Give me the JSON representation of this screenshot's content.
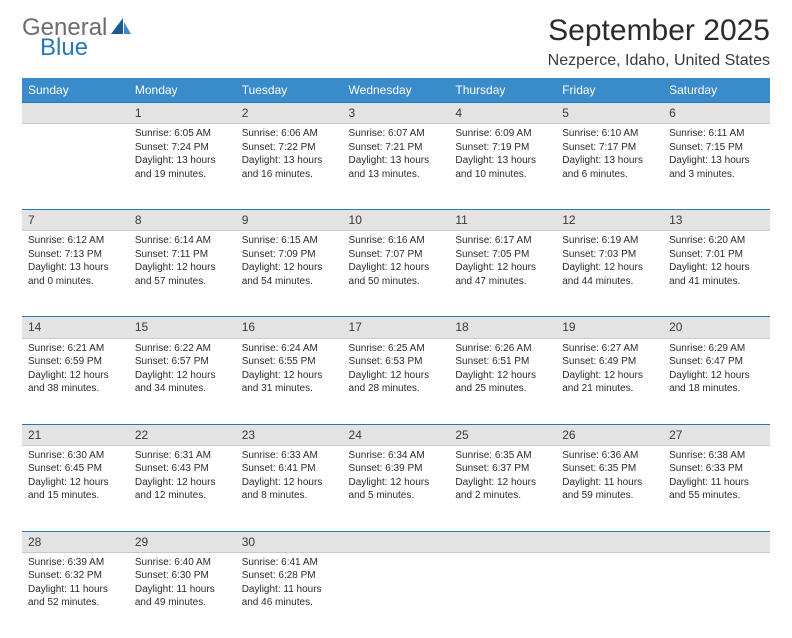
{
  "logo": {
    "text1": "General",
    "text2": "Blue",
    "accent_color": "#2978b5",
    "gray_color": "#6c6c6c"
  },
  "header": {
    "month": "September 2025",
    "location": "Nezperce, Idaho, United States"
  },
  "colors": {
    "header_bg": "#3a8bc9",
    "header_fg": "#ffffff",
    "daynum_bg": "#e3e3e3",
    "daynum_border_top": "#2978b5",
    "body_text": "#2b2b2b"
  },
  "day_names": [
    "Sunday",
    "Monday",
    "Tuesday",
    "Wednesday",
    "Thursday",
    "Friday",
    "Saturday"
  ],
  "weeks": [
    {
      "nums": [
        "",
        "1",
        "2",
        "3",
        "4",
        "5",
        "6"
      ],
      "cells": [
        null,
        {
          "sunrise": "Sunrise: 6:05 AM",
          "sunset": "Sunset: 7:24 PM",
          "day1": "Daylight: 13 hours",
          "day2": "and 19 minutes."
        },
        {
          "sunrise": "Sunrise: 6:06 AM",
          "sunset": "Sunset: 7:22 PM",
          "day1": "Daylight: 13 hours",
          "day2": "and 16 minutes."
        },
        {
          "sunrise": "Sunrise: 6:07 AM",
          "sunset": "Sunset: 7:21 PM",
          "day1": "Daylight: 13 hours",
          "day2": "and 13 minutes."
        },
        {
          "sunrise": "Sunrise: 6:09 AM",
          "sunset": "Sunset: 7:19 PM",
          "day1": "Daylight: 13 hours",
          "day2": "and 10 minutes."
        },
        {
          "sunrise": "Sunrise: 6:10 AM",
          "sunset": "Sunset: 7:17 PM",
          "day1": "Daylight: 13 hours",
          "day2": "and 6 minutes."
        },
        {
          "sunrise": "Sunrise: 6:11 AM",
          "sunset": "Sunset: 7:15 PM",
          "day1": "Daylight: 13 hours",
          "day2": "and 3 minutes."
        }
      ]
    },
    {
      "nums": [
        "7",
        "8",
        "9",
        "10",
        "11",
        "12",
        "13"
      ],
      "cells": [
        {
          "sunrise": "Sunrise: 6:12 AM",
          "sunset": "Sunset: 7:13 PM",
          "day1": "Daylight: 13 hours",
          "day2": "and 0 minutes."
        },
        {
          "sunrise": "Sunrise: 6:14 AM",
          "sunset": "Sunset: 7:11 PM",
          "day1": "Daylight: 12 hours",
          "day2": "and 57 minutes."
        },
        {
          "sunrise": "Sunrise: 6:15 AM",
          "sunset": "Sunset: 7:09 PM",
          "day1": "Daylight: 12 hours",
          "day2": "and 54 minutes."
        },
        {
          "sunrise": "Sunrise: 6:16 AM",
          "sunset": "Sunset: 7:07 PM",
          "day1": "Daylight: 12 hours",
          "day2": "and 50 minutes."
        },
        {
          "sunrise": "Sunrise: 6:17 AM",
          "sunset": "Sunset: 7:05 PM",
          "day1": "Daylight: 12 hours",
          "day2": "and 47 minutes."
        },
        {
          "sunrise": "Sunrise: 6:19 AM",
          "sunset": "Sunset: 7:03 PM",
          "day1": "Daylight: 12 hours",
          "day2": "and 44 minutes."
        },
        {
          "sunrise": "Sunrise: 6:20 AM",
          "sunset": "Sunset: 7:01 PM",
          "day1": "Daylight: 12 hours",
          "day2": "and 41 minutes."
        }
      ]
    },
    {
      "nums": [
        "14",
        "15",
        "16",
        "17",
        "18",
        "19",
        "20"
      ],
      "cells": [
        {
          "sunrise": "Sunrise: 6:21 AM",
          "sunset": "Sunset: 6:59 PM",
          "day1": "Daylight: 12 hours",
          "day2": "and 38 minutes."
        },
        {
          "sunrise": "Sunrise: 6:22 AM",
          "sunset": "Sunset: 6:57 PM",
          "day1": "Daylight: 12 hours",
          "day2": "and 34 minutes."
        },
        {
          "sunrise": "Sunrise: 6:24 AM",
          "sunset": "Sunset: 6:55 PM",
          "day1": "Daylight: 12 hours",
          "day2": "and 31 minutes."
        },
        {
          "sunrise": "Sunrise: 6:25 AM",
          "sunset": "Sunset: 6:53 PM",
          "day1": "Daylight: 12 hours",
          "day2": "and 28 minutes."
        },
        {
          "sunrise": "Sunrise: 6:26 AM",
          "sunset": "Sunset: 6:51 PM",
          "day1": "Daylight: 12 hours",
          "day2": "and 25 minutes."
        },
        {
          "sunrise": "Sunrise: 6:27 AM",
          "sunset": "Sunset: 6:49 PM",
          "day1": "Daylight: 12 hours",
          "day2": "and 21 minutes."
        },
        {
          "sunrise": "Sunrise: 6:29 AM",
          "sunset": "Sunset: 6:47 PM",
          "day1": "Daylight: 12 hours",
          "day2": "and 18 minutes."
        }
      ]
    },
    {
      "nums": [
        "21",
        "22",
        "23",
        "24",
        "25",
        "26",
        "27"
      ],
      "cells": [
        {
          "sunrise": "Sunrise: 6:30 AM",
          "sunset": "Sunset: 6:45 PM",
          "day1": "Daylight: 12 hours",
          "day2": "and 15 minutes."
        },
        {
          "sunrise": "Sunrise: 6:31 AM",
          "sunset": "Sunset: 6:43 PM",
          "day1": "Daylight: 12 hours",
          "day2": "and 12 minutes."
        },
        {
          "sunrise": "Sunrise: 6:33 AM",
          "sunset": "Sunset: 6:41 PM",
          "day1": "Daylight: 12 hours",
          "day2": "and 8 minutes."
        },
        {
          "sunrise": "Sunrise: 6:34 AM",
          "sunset": "Sunset: 6:39 PM",
          "day1": "Daylight: 12 hours",
          "day2": "and 5 minutes."
        },
        {
          "sunrise": "Sunrise: 6:35 AM",
          "sunset": "Sunset: 6:37 PM",
          "day1": "Daylight: 12 hours",
          "day2": "and 2 minutes."
        },
        {
          "sunrise": "Sunrise: 6:36 AM",
          "sunset": "Sunset: 6:35 PM",
          "day1": "Daylight: 11 hours",
          "day2": "and 59 minutes."
        },
        {
          "sunrise": "Sunrise: 6:38 AM",
          "sunset": "Sunset: 6:33 PM",
          "day1": "Daylight: 11 hours",
          "day2": "and 55 minutes."
        }
      ]
    },
    {
      "nums": [
        "28",
        "29",
        "30",
        "",
        "",
        "",
        ""
      ],
      "cells": [
        {
          "sunrise": "Sunrise: 6:39 AM",
          "sunset": "Sunset: 6:32 PM",
          "day1": "Daylight: 11 hours",
          "day2": "and 52 minutes."
        },
        {
          "sunrise": "Sunrise: 6:40 AM",
          "sunset": "Sunset: 6:30 PM",
          "day1": "Daylight: 11 hours",
          "day2": "and 49 minutes."
        },
        {
          "sunrise": "Sunrise: 6:41 AM",
          "sunset": "Sunset: 6:28 PM",
          "day1": "Daylight: 11 hours",
          "day2": "and 46 minutes."
        },
        null,
        null,
        null,
        null
      ]
    }
  ]
}
